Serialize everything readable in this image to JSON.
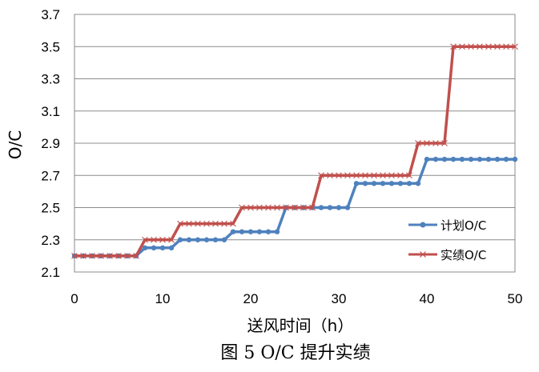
{
  "chart_data": {
    "type": "line",
    "title": "",
    "caption": "图 5 O/C 提升实绩",
    "xlabel": "送风时间（h）",
    "ylabel": "O/C",
    "xlim": [
      0,
      50
    ],
    "ylim": [
      2.1,
      3.7
    ],
    "xticks": [
      0,
      10,
      20,
      30,
      40,
      50
    ],
    "yticks": [
      2.1,
      2.3,
      2.5,
      2.7,
      2.9,
      3.1,
      3.3,
      3.5,
      3.7
    ],
    "ytick_labels": [
      "2.1",
      "2.3",
      "2.5",
      "2.7",
      "2.9",
      "3.1",
      "3.3",
      "3.5",
      "3.7"
    ],
    "grid": true,
    "legend_position": "right",
    "x": [
      0,
      1,
      2,
      3,
      4,
      5,
      6,
      7,
      8,
      9,
      10,
      11,
      12,
      13,
      14,
      15,
      16,
      17,
      18,
      19,
      20,
      21,
      22,
      23,
      24,
      25,
      26,
      27,
      28,
      29,
      30,
      31,
      32,
      33,
      34,
      35,
      36,
      37,
      38,
      39,
      40,
      41,
      42,
      43,
      44,
      45,
      46,
      47,
      48,
      49,
      50
    ],
    "series": [
      {
        "name": "计划O/C",
        "color": "#4F81BD",
        "marker": "circle",
        "values": [
          2.2,
          2.2,
          2.2,
          2.2,
          2.2,
          2.2,
          2.2,
          2.2,
          2.25,
          2.25,
          2.25,
          2.25,
          2.3,
          2.3,
          2.3,
          2.3,
          2.3,
          2.3,
          2.35,
          2.35,
          2.35,
          2.35,
          2.35,
          2.35,
          2.5,
          2.5,
          2.5,
          2.5,
          2.5,
          2.5,
          2.5,
          2.5,
          2.65,
          2.65,
          2.65,
          2.65,
          2.65,
          2.65,
          2.65,
          2.65,
          2.8,
          2.8,
          2.8,
          2.8,
          2.8,
          2.8,
          2.8,
          2.8,
          2.8,
          2.8,
          2.8
        ]
      },
      {
        "name": "实绩O/C",
        "color": "#C0504D",
        "marker": "x",
        "values": [
          2.2,
          2.2,
          2.2,
          2.2,
          2.2,
          2.2,
          2.2,
          2.2,
          2.3,
          2.3,
          2.3,
          2.3,
          2.4,
          2.4,
          2.4,
          2.4,
          2.4,
          2.4,
          2.4,
          2.5,
          2.5,
          2.5,
          2.5,
          2.5,
          2.5,
          2.5,
          2.5,
          2.5,
          2.7,
          2.7,
          2.7,
          2.7,
          2.7,
          2.7,
          2.7,
          2.7,
          2.7,
          2.7,
          2.7,
          2.9,
          2.9,
          2.9,
          2.9,
          3.5,
          3.5,
          3.5,
          3.5,
          3.5,
          3.5,
          3.5,
          3.5
        ]
      }
    ]
  }
}
